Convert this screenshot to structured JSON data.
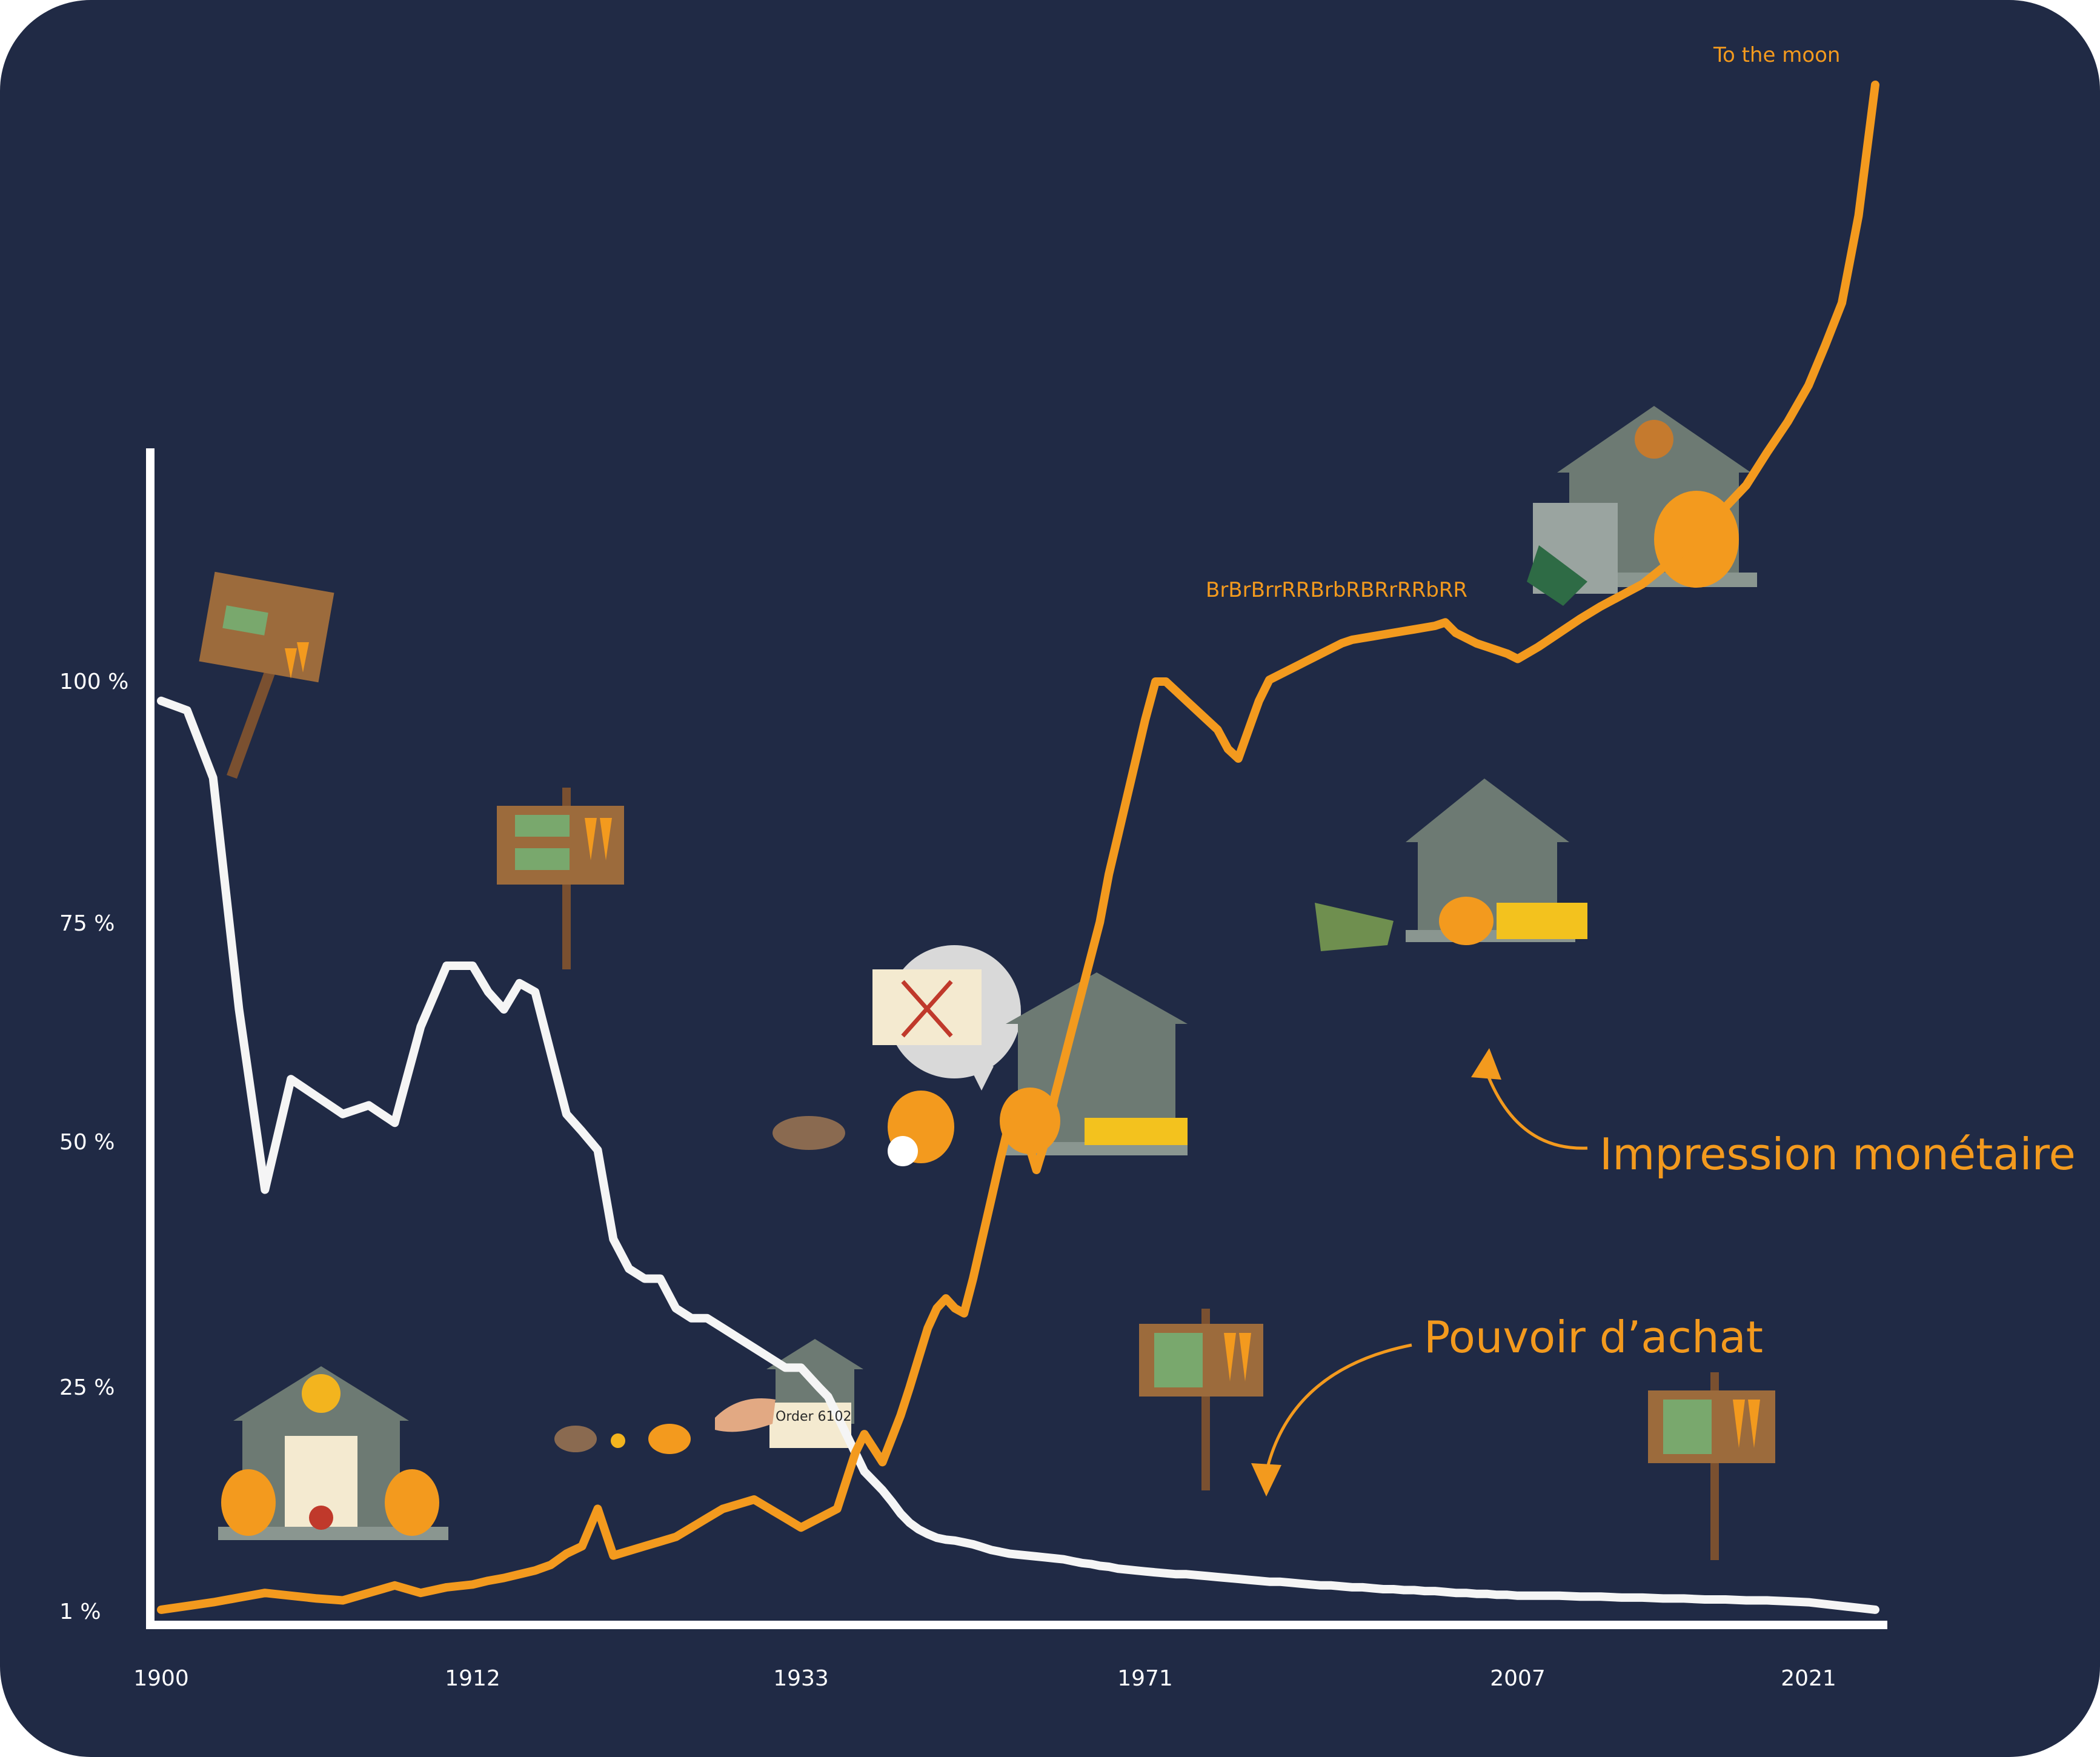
{
  "colors": {
    "background": "#202a45",
    "axis": "#ffffff",
    "purchasing_power": "#f5f5f5",
    "money_printing": "#f39a1e",
    "accent": "#f39a1e"
  },
  "annotations": {
    "to_the_moon": "To the moon",
    "brr": "BrBrBrrRRBrbRBRrRRbRR",
    "impression": "Impression monétaire",
    "pouvoir": "Pouvoir d’achat",
    "order": "Order 6102"
  },
  "chart_data": {
    "type": "line",
    "title": "",
    "xlabel": "",
    "ylabel": "",
    "grid": false,
    "y_ticks": [
      "100 %",
      "75 %",
      "50 %",
      "25 %",
      "1 %"
    ],
    "x_ticks": [
      "1900",
      "1912",
      "1933",
      "1971",
      "2007",
      "2021"
    ],
    "series": [
      {
        "name": "Pouvoir d’achat",
        "color": "#f5f5f5",
        "points": [
          [
            1900,
            98
          ],
          [
            1901,
            97
          ],
          [
            1902,
            90
          ],
          [
            1903,
            65
          ],
          [
            1904,
            45
          ],
          [
            1905,
            57
          ],
          [
            1906,
            55
          ],
          [
            1907,
            53
          ],
          [
            1908,
            54
          ],
          [
            1909,
            52
          ],
          [
            1910,
            63
          ],
          [
            1911,
            70
          ],
          [
            1912,
            70
          ],
          [
            1913,
            67
          ],
          [
            1914,
            65
          ],
          [
            1915,
            68
          ],
          [
            1916,
            67
          ],
          [
            1917,
            60
          ],
          [
            1918,
            53
          ],
          [
            1919,
            51
          ],
          [
            1920,
            49
          ],
          [
            1921,
            40
          ],
          [
            1922,
            37
          ],
          [
            1923,
            36
          ],
          [
            1924,
            36
          ],
          [
            1925,
            33
          ],
          [
            1926,
            32
          ],
          [
            1927,
            32
          ],
          [
            1928,
            31
          ],
          [
            1929,
            30
          ],
          [
            1930,
            29
          ],
          [
            1931,
            28
          ],
          [
            1932,
            27
          ],
          [
            1933,
            27
          ],
          [
            1934,
            26
          ],
          [
            1935,
            25
          ],
          [
            1936,
            24
          ],
          [
            1937,
            22
          ],
          [
            1938,
            20
          ],
          [
            1939,
            18
          ],
          [
            1940,
            16
          ],
          [
            1941,
            15
          ],
          [
            1942,
            14
          ],
          [
            1943,
            12.8
          ],
          [
            1944,
            11.5
          ],
          [
            1945,
            10.5
          ],
          [
            1946,
            9.8
          ],
          [
            1947,
            9.3
          ],
          [
            1948,
            8.9
          ],
          [
            1949,
            8.7
          ],
          [
            1950,
            8.6
          ],
          [
            1951,
            8.4
          ],
          [
            1952,
            8.2
          ],
          [
            1953,
            7.9
          ],
          [
            1954,
            7.6
          ],
          [
            1955,
            7.4
          ],
          [
            1956,
            7.2
          ],
          [
            1957,
            7.1
          ],
          [
            1958,
            7.0
          ],
          [
            1959,
            6.9
          ],
          [
            1960,
            6.8
          ],
          [
            1961,
            6.7
          ],
          [
            1962,
            6.6
          ],
          [
            1963,
            6.4
          ],
          [
            1964,
            6.2
          ],
          [
            1965,
            6.1
          ],
          [
            1966,
            5.9
          ],
          [
            1967,
            5.8
          ],
          [
            1968,
            5.6
          ],
          [
            1969,
            5.5
          ],
          [
            1970,
            5.4
          ],
          [
            1971,
            5.3
          ],
          [
            1972,
            5.2
          ],
          [
            1973,
            5.1
          ],
          [
            1974,
            5.0
          ],
          [
            1975,
            5.0
          ],
          [
            1976,
            4.9
          ],
          [
            1977,
            4.8
          ],
          [
            1978,
            4.7
          ],
          [
            1979,
            4.6
          ],
          [
            1980,
            4.5
          ],
          [
            1981,
            4.4
          ],
          [
            1982,
            4.3
          ],
          [
            1983,
            4.2
          ],
          [
            1984,
            4.2
          ],
          [
            1985,
            4.1
          ],
          [
            1986,
            4.0
          ],
          [
            1987,
            3.9
          ],
          [
            1988,
            3.8
          ],
          [
            1989,
            3.8
          ],
          [
            1990,
            3.7
          ],
          [
            1991,
            3.6
          ],
          [
            1992,
            3.6
          ],
          [
            1993,
            3.5
          ],
          [
            1994,
            3.4
          ],
          [
            1995,
            3.4
          ],
          [
            1996,
            3.3
          ],
          [
            1997,
            3.3
          ],
          [
            1998,
            3.2
          ],
          [
            1999,
            3.2
          ],
          [
            2000,
            3.1
          ],
          [
            2001,
            3.0
          ],
          [
            2002,
            3.0
          ],
          [
            2003,
            2.9
          ],
          [
            2004,
            2.9
          ],
          [
            2005,
            2.8
          ],
          [
            2006,
            2.8
          ],
          [
            2007,
            2.7
          ],
          [
            2008,
            2.7
          ],
          [
            2009,
            2.7
          ],
          [
            2010,
            2.6
          ],
          [
            2011,
            2.6
          ],
          [
            2012,
            2.5
          ],
          [
            2013,
            2.5
          ],
          [
            2014,
            2.4
          ],
          [
            2015,
            2.4
          ],
          [
            2016,
            2.3
          ],
          [
            2017,
            2.3
          ],
          [
            2018,
            2.2
          ],
          [
            2019,
            2.2
          ],
          [
            2020,
            2.1
          ],
          [
            2021,
            2.0
          ],
          [
            2022,
            1.8
          ],
          [
            2023,
            1.6
          ],
          [
            2024,
            1.4
          ],
          [
            2025,
            1.2
          ]
        ]
      },
      {
        "name": "Impression monétaire",
        "color": "#f39a1e",
        "points": [
          [
            1900,
            1.2
          ],
          [
            1901,
            1.6
          ],
          [
            1902,
            2
          ],
          [
            1903,
            2.5
          ],
          [
            1904,
            3
          ],
          [
            1905,
            2.7
          ],
          [
            1906,
            2.4
          ],
          [
            1907,
            2.2
          ],
          [
            1908,
            3
          ],
          [
            1909,
            3.8
          ],
          [
            1910,
            3.0
          ],
          [
            1911,
            3.6
          ],
          [
            1912,
            3.9
          ],
          [
            1913,
            4.3
          ],
          [
            1914,
            4.6
          ],
          [
            1915,
            5.0
          ],
          [
            1916,
            5.4
          ],
          [
            1917,
            6
          ],
          [
            1918,
            7.2
          ],
          [
            1919,
            8
          ],
          [
            1920,
            12
          ],
          [
            1921,
            7
          ],
          [
            1922,
            7.5
          ],
          [
            1923,
            8
          ],
          [
            1924,
            8.5
          ],
          [
            1925,
            9
          ],
          [
            1926,
            10
          ],
          [
            1927,
            11
          ],
          [
            1928,
            12
          ],
          [
            1929,
            12.5
          ],
          [
            1930,
            13
          ],
          [
            1931,
            12
          ],
          [
            1932,
            11
          ],
          [
            1933,
            10
          ],
          [
            1934,
            10.5
          ],
          [
            1935,
            11
          ],
          [
            1936,
            11.5
          ],
          [
            1937,
            12
          ],
          [
            1938,
            15
          ],
          [
            1939,
            18
          ],
          [
            1940,
            20
          ],
          [
            1941,
            18.5
          ],
          [
            1942,
            17
          ],
          [
            1943,
            19.5
          ],
          [
            1944,
            22
          ],
          [
            1945,
            25
          ],
          [
            1946,
            28
          ],
          [
            1947,
            31
          ],
          [
            1948,
            33
          ],
          [
            1949,
            34
          ],
          [
            1950,
            33
          ],
          [
            1951,
            32.5
          ],
          [
            1952,
            36
          ],
          [
            1953,
            40
          ],
          [
            1954,
            44
          ],
          [
            1955,
            48
          ],
          [
            1956,
            52
          ],
          [
            1957,
            51
          ],
          [
            1958,
            50
          ],
          [
            1959,
            47
          ],
          [
            1960,
            50
          ],
          [
            1961,
            55
          ],
          [
            1962,
            59
          ],
          [
            1963,
            63
          ],
          [
            1964,
            67
          ],
          [
            1965,
            71
          ],
          [
            1966,
            75
          ],
          [
            1967,
            80
          ],
          [
            1968,
            84
          ],
          [
            1969,
            88
          ],
          [
            1970,
            92
          ],
          [
            1971,
            96
          ],
          [
            1972,
            100
          ],
          [
            1973,
            100
          ],
          [
            1974,
            99
          ],
          [
            1975,
            98
          ],
          [
            1976,
            97
          ],
          [
            1977,
            96
          ],
          [
            1978,
            95
          ],
          [
            1979,
            93
          ],
          [
            1980,
            92
          ],
          [
            1981,
            95
          ],
          [
            1982,
            98
          ],
          [
            1983,
            101
          ],
          [
            1984,
            104
          ],
          [
            1985,
            107
          ],
          [
            1986,
            110
          ],
          [
            1987,
            113
          ],
          [
            1988,
            116
          ],
          [
            1989,
            119
          ],
          [
            1990,
            122
          ],
          [
            1991,
            124
          ],
          [
            1992,
            125
          ],
          [
            1993,
            126
          ],
          [
            1994,
            127
          ],
          [
            1995,
            128
          ],
          [
            1996,
            129
          ],
          [
            1997,
            130
          ],
          [
            1998,
            131
          ],
          [
            1999,
            132
          ],
          [
            2000,
            134
          ],
          [
            2001,
            128
          ],
          [
            2002,
            125
          ],
          [
            2003,
            122
          ],
          [
            2004,
            120
          ],
          [
            2005,
            118
          ],
          [
            2006,
            116
          ],
          [
            2007,
            113
          ],
          [
            2008,
            120
          ],
          [
            2009,
            128
          ],
          [
            2010,
            136
          ],
          [
            2011,
            145
          ],
          [
            2012,
            155
          ],
          [
            2013,
            165
          ],
          [
            2014,
            180
          ],
          [
            2015,
            195
          ],
          [
            2016,
            215
          ],
          [
            2017,
            235
          ],
          [
            2018,
            255
          ],
          [
            2019,
            285
          ],
          [
            2020,
            320
          ],
          [
            2021,
            370
          ],
          [
            2022,
            430
          ],
          [
            2023,
            500
          ],
          [
            2024,
            580
          ],
          [
            2025,
            700
          ]
        ]
      }
    ]
  }
}
